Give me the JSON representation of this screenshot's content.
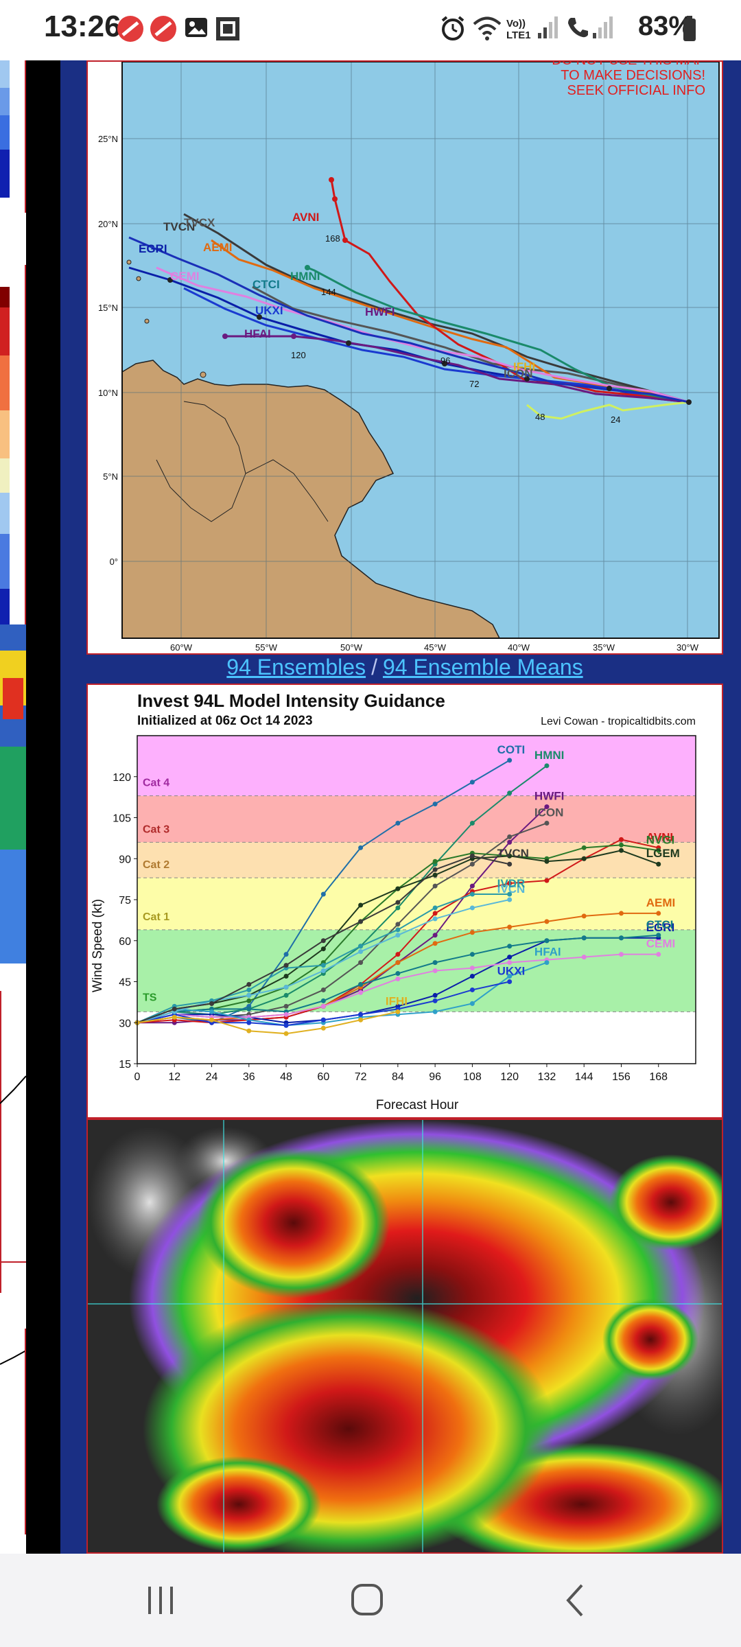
{
  "status_bar": {
    "time": "13:26",
    "battery": "83%",
    "network_label": "Vo)) LTE1",
    "icons": [
      "no-entry-icon",
      "no-entry-icon",
      "image-icon",
      "screenshot-icon",
      "alarm-icon",
      "wifi-icon",
      "signal-icon",
      "call-icon",
      "signal-icon",
      "battery-icon"
    ]
  },
  "track_map": {
    "warning": [
      "DO NOT USE THIS MAP",
      "TO MAKE DECISIONS!",
      "SEEK OFFICIAL INFO"
    ],
    "lat_labels": [
      "25°N",
      "20°N",
      "15°N",
      "10°N",
      "5°N",
      "0°"
    ],
    "lon_labels": [
      "60°W",
      "55°W",
      "50°W",
      "45°W",
      "40°W",
      "35°W",
      "30°W"
    ],
    "model_labels": [
      "TVCN",
      "TVCX",
      "AEMI",
      "AVNI",
      "HMNI",
      "CTCI",
      "UKXI",
      "HWFI",
      "HFAI",
      "IFHI",
      "CEMI",
      "EGRI",
      "ICON"
    ],
    "hour_labels": [
      "168",
      "144",
      "120",
      "96",
      "72",
      "48",
      "24"
    ]
  },
  "links": {
    "ensembles": "94 Ensembles",
    "separator": "/",
    "ensemble_means": "94 Ensemble Means"
  },
  "intensity_chart": {
    "title": "Invest 94L Model Intensity Guidance",
    "subtitle": "Initialized at 06z Oct 14 2023",
    "credit": "Levi Cowan - tropicaltidbits.com",
    "ylabel": "Wind Speed (kt)",
    "xlabel": "Forecast Hour",
    "categories": [
      "TS",
      "Cat 1",
      "Cat 2",
      "Cat 3",
      "Cat 4"
    ]
  },
  "chart_data": {
    "type": "line",
    "title": "Invest 94L Model Intensity Guidance",
    "subtitle": "Initialized at 06z Oct 14 2023",
    "xlabel": "Forecast Hour",
    "ylabel": "Wind Speed (kt)",
    "x": [
      0,
      12,
      24,
      36,
      48,
      60,
      72,
      84,
      96,
      108,
      120,
      132,
      144,
      156,
      168
    ],
    "xlim": [
      0,
      180
    ],
    "ylim": [
      15,
      135
    ],
    "yticks": [
      15,
      30,
      45,
      60,
      75,
      90,
      105,
      120
    ],
    "bands": [
      {
        "name": "TS",
        "from": 34,
        "to": 64,
        "color": "#a8f0a8"
      },
      {
        "name": "Cat 1",
        "from": 64,
        "to": 83,
        "color": "#fdfda8"
      },
      {
        "name": "Cat 2",
        "from": 83,
        "to": 96,
        "color": "#fde0b0"
      },
      {
        "name": "Cat 3",
        "from": 96,
        "to": 113,
        "color": "#fdb0b0"
      },
      {
        "name": "Cat 4",
        "from": 113,
        "to": 135,
        "color": "#fdb0fd"
      }
    ],
    "series": [
      {
        "name": "COTI",
        "color": "#1f6fa8",
        "values": [
          30,
          32,
          30,
          36,
          55,
          77,
          94,
          103,
          110,
          118,
          126,
          null,
          null,
          null,
          null
        ]
      },
      {
        "name": "HMNI",
        "color": "#1a8a6a",
        "values": [
          30,
          34,
          33,
          35,
          40,
          48,
          58,
          72,
          88,
          103,
          114,
          124,
          null,
          null,
          null
        ]
      },
      {
        "name": "HWFI",
        "color": "#6a1a80",
        "values": [
          30,
          30,
          31,
          31,
          32,
          36,
          42,
          52,
          62,
          80,
          96,
          109,
          null,
          null,
          null
        ]
      },
      {
        "name": "ICON",
        "color": "#555555",
        "values": [
          30,
          33,
          32,
          33,
          36,
          42,
          52,
          66,
          80,
          88,
          98,
          103,
          null,
          null,
          null
        ]
      },
      {
        "name": "AVNI",
        "color": "#d01818",
        "values": [
          30,
          31,
          30,
          31,
          32,
          36,
          44,
          55,
          70,
          78,
          81,
          82,
          90,
          97,
          94
        ]
      },
      {
        "name": "NVGI",
        "color": "#2a7a2a",
        "values": [
          30,
          34,
          35,
          38,
          43,
          52,
          67,
          79,
          89,
          92,
          91,
          90,
          94,
          95,
          93
        ]
      },
      {
        "name": "LGEM",
        "color": "#1e3a1e",
        "values": [
          30,
          35,
          37,
          40,
          47,
          57,
          73,
          79,
          84,
          90,
          91,
          89,
          90,
          93,
          88
        ]
      },
      {
        "name": "AEMI",
        "color": "#e06a10",
        "values": [
          30,
          32,
          31,
          32,
          33,
          36,
          43,
          52,
          59,
          63,
          65,
          67,
          69,
          70,
          70
        ]
      },
      {
        "name": "EGRI",
        "color": "#0a1fa8",
        "values": [
          30,
          33,
          33,
          32,
          30,
          31,
          33,
          36,
          40,
          47,
          54,
          60,
          61,
          61,
          61
        ]
      },
      {
        "name": "CTCI",
        "color": "#127a8a",
        "values": [
          30,
          34,
          35,
          35,
          34,
          38,
          44,
          48,
          52,
          55,
          58,
          60,
          61,
          61,
          62
        ]
      },
      {
        "name": "CEMI",
        "color": "#e080e0",
        "values": [
          30,
          33,
          32,
          32,
          33,
          36,
          41,
          46,
          49,
          50,
          52,
          53,
          54,
          55,
          55
        ]
      },
      {
        "name": "HFAI",
        "color": "#2fa0c8",
        "values": [
          30,
          35,
          34,
          31,
          29,
          30,
          32,
          33,
          34,
          37,
          47,
          52,
          null,
          null,
          null
        ]
      },
      {
        "name": "UKXI",
        "color": "#1a3ad0",
        "values": [
          30,
          33,
          30,
          30,
          29,
          31,
          33,
          35,
          38,
          42,
          45,
          null,
          null,
          null,
          null
        ]
      },
      {
        "name": "IVCN",
        "color": "#5ab8d8",
        "values": [
          30,
          34,
          38,
          40,
          43,
          49,
          56,
          62,
          68,
          72,
          75,
          null,
          null,
          null,
          null
        ]
      },
      {
        "name": "IVDR",
        "color": "#2a9aa8",
        "values": [
          30,
          36,
          38,
          42,
          50,
          51,
          58,
          64,
          72,
          77,
          77,
          null,
          null,
          null,
          null
        ]
      },
      {
        "name": "TVCN",
        "color": "#3a3a3a",
        "values": [
          30,
          35,
          37,
          44,
          51,
          60,
          67,
          74,
          86,
          91,
          88,
          null,
          null,
          null,
          null
        ]
      },
      {
        "name": "IFHI",
        "color": "#e0b020",
        "values": [
          30,
          32,
          31,
          27,
          26,
          28,
          31,
          34,
          null,
          null,
          null,
          null,
          null,
          null,
          null
        ]
      }
    ]
  }
}
